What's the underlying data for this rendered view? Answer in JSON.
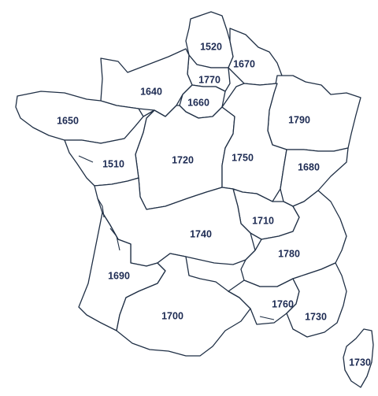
{
  "map": {
    "regions": [
      {
        "id": "nord-pas-de-calais",
        "value": "1520"
      },
      {
        "id": "champagne-ardenne",
        "value": "1670"
      },
      {
        "id": "picardie",
        "value": "1770"
      },
      {
        "id": "normandie",
        "value": "1640"
      },
      {
        "id": "ile-de-france",
        "value": "1660"
      },
      {
        "id": "bretagne",
        "value": "1650"
      },
      {
        "id": "lorraine",
        "value": "1790"
      },
      {
        "id": "centre",
        "value": "1720"
      },
      {
        "id": "bourgogne",
        "value": "1750"
      },
      {
        "id": "pays-de-la-loire",
        "value": "1510"
      },
      {
        "id": "franche-comte",
        "value": "1680"
      },
      {
        "id": "auvergne",
        "value": "1710"
      },
      {
        "id": "limousin-poitou",
        "value": "1740"
      },
      {
        "id": "rhone-alpes",
        "value": "1780"
      },
      {
        "id": "aquitaine",
        "value": "1690"
      },
      {
        "id": "languedoc",
        "value": "1760"
      },
      {
        "id": "midi-pyrenees",
        "value": "1700"
      },
      {
        "id": "paca",
        "value": "1730"
      },
      {
        "id": "corse",
        "value": "1730"
      }
    ],
    "colors": {
      "stroke": "#1f2f45",
      "label": "#1c2a52",
      "fill": "#ffffff"
    }
  }
}
